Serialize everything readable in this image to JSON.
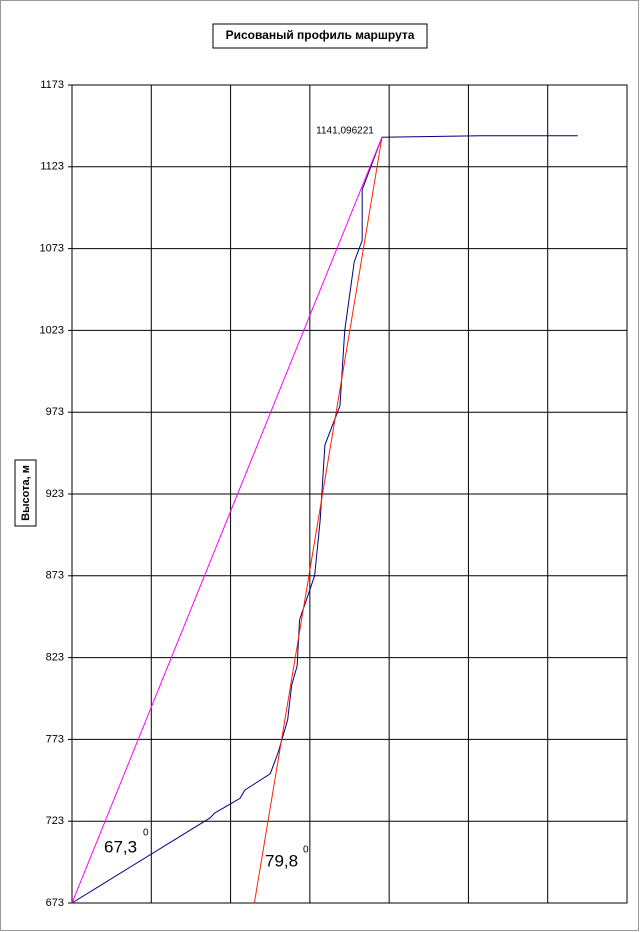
{
  "chart_data": {
    "type": "line",
    "title": "Рисованый профиль маршрута",
    "y_label": "Высота, м",
    "xlim": [
      0,
      7
    ],
    "xticks": [
      0,
      1,
      2,
      3,
      4,
      5,
      6,
      7
    ],
    "ylim": [
      673,
      1173
    ],
    "yticks": [
      673,
      723,
      773,
      823,
      873,
      923,
      973,
      1023,
      1073,
      1123,
      1173
    ],
    "grid": true,
    "series": [
      {
        "color": "#000080",
        "x": [
          0,
          1.74,
          1.8,
          2.12,
          2.18,
          2.5,
          2.6,
          2.72,
          2.77,
          2.84,
          2.87,
          3.06,
          3.13,
          3.19,
          3.38,
          3.44,
          3.56,
          3.66,
          3.66,
          3.91,
          5.15,
          6.38
        ],
        "values": [
          673,
          725,
          728,
          737,
          742,
          752,
          765,
          785,
          806,
          818,
          846,
          873,
          907,
          953,
          977,
          1023,
          1065,
          1078,
          1109,
          1141.096221,
          1142,
          1142
        ]
      },
      {
        "color": "#ff00ff",
        "x": [
          0,
          3.91
        ],
        "values": [
          673,
          1141.096221
        ]
      },
      {
        "color": "#ff2000",
        "x": [
          2.3,
          3.91
        ],
        "values": [
          673,
          1141.096221
        ]
      }
    ],
    "annotations": [
      {
        "text": "1141,096221"
      },
      {
        "text": "67,3"
      },
      {
        "text": "0"
      },
      {
        "text": "79,8"
      },
      {
        "text": "0"
      }
    ]
  }
}
